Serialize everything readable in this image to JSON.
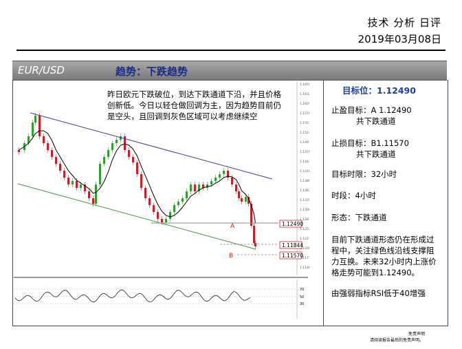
{
  "header": {
    "title": "技术 分析 日评",
    "date": "2019年03月08日"
  },
  "banner": {
    "pair": "EUR/USD",
    "trend": "趋势：下跌趋势"
  },
  "chart": {
    "note": "昨日欧元下跌破位，到达下跌通道下沿，并且价格创新低。今日以轻仓做回调为主，因为趋势目前仍是空头，且回调到灰色区域可以考虑继续空",
    "marker_a": "A",
    "marker_b": "B",
    "level_1": "1.12490",
    "level_2": "1.11844",
    "level_3": "1.11570",
    "price_scale": [
      "1.16590",
      "1.16320",
      "1.16050",
      "1.15780",
      "1.15510",
      "1.15240",
      "1.14970",
      "1.14700",
      "1.14430",
      "1.14160",
      "1.13890",
      "1.13620",
      "1.13350",
      "1.13080",
      "1.12810",
      "1.12540",
      "1.12270",
      "1.12000",
      "1.11730",
      "1.11460"
    ],
    "rsi_scale": [
      "70",
      "50",
      "30"
    ],
    "colors": {
      "channel_upper": "#3a3aa8",
      "channel_lower": "#3c9a3c",
      "ma": "#000000",
      "up_candle": "#2ea02e",
      "down_candle": "#c8202a",
      "level_box": "#d02020",
      "rsi_line": "#202020"
    }
  },
  "side": {
    "target": "目标位：1.12490",
    "tp_label": "止盈目标：A 1.12490",
    "tp_sub": "共下跌通道",
    "sl_label": "止损目标：B1.11570",
    "sl_sub": "共下跌通道",
    "horizon": "目标时限：32小时",
    "timeframe": "时段：4小时",
    "pattern": "形态：下跌通道",
    "analysis": "目前下跌通道形态仍在形成过程中，关注绿色线沿线支撑阻力互换。未来32小时内上涨价格走势可能到1.12490。",
    "rsi_note": "由强弱指标RSI低于40增强"
  },
  "disclaimer": {
    "line1": "免责声明",
    "line2": "请阅读报告最后的免责声明。"
  }
}
